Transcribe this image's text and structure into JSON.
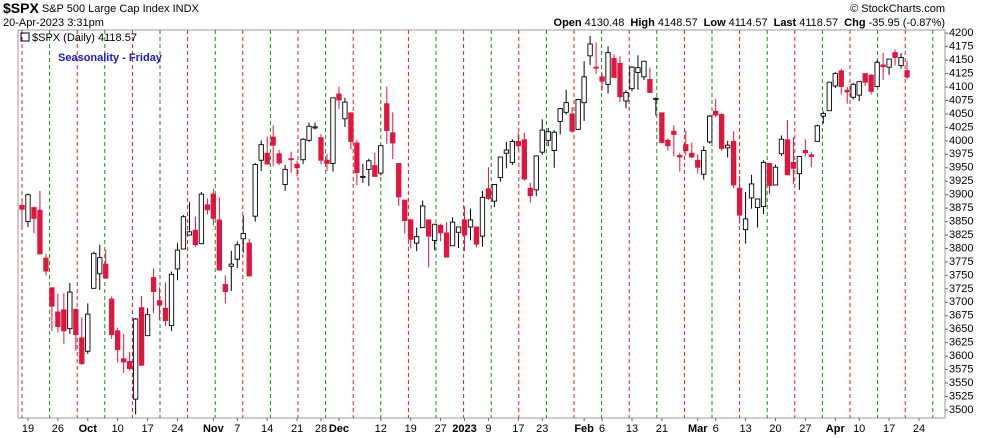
{
  "chart_data": {
    "type": "candlestick",
    "symbol": "$SPX",
    "name": "S&P 500 Large Cap Index",
    "exchange": "INDX",
    "timestamp": "20-Apr-2023 3:31pm",
    "quote": [
      {
        "label": "Open",
        "value": 4130.48
      },
      {
        "label": "High",
        "value": 4148.57
      },
      {
        "label": "Low",
        "value": 4114.57
      },
      {
        "label": "Last",
        "value": 4118.57
      },
      {
        "label": "Chg",
        "value": "-35.95 (-0.87%)"
      }
    ],
    "credit": "© StockCharts.com",
    "legend": "$SPX (Daily) 4118.57",
    "title": "Seasonality - Friday",
    "categories": [
      null,
      "19",
      null,
      null,
      null,
      null,
      "26",
      null,
      null,
      null,
      null,
      "Oct",
      null,
      null,
      null,
      null,
      "10",
      null,
      null,
      null,
      null,
      "17",
      null,
      null,
      null,
      null,
      "24",
      null,
      null,
      null,
      null,
      null,
      "Nov",
      null,
      null,
      null,
      "7",
      null,
      null,
      null,
      null,
      "14",
      null,
      null,
      null,
      null,
      "21",
      null,
      null,
      null,
      "28",
      null,
      null,
      "Dec",
      null,
      null,
      null,
      null,
      null,
      null,
      "12",
      null,
      null,
      null,
      null,
      "19",
      null,
      null,
      null,
      null,
      "27",
      null,
      null,
      null,
      "2023",
      null,
      null,
      null,
      "9",
      null,
      null,
      null,
      null,
      "17",
      null,
      null,
      null,
      "23",
      null,
      null,
      null,
      null,
      null,
      null,
      "Feb",
      null,
      null,
      "6",
      null,
      null,
      null,
      null,
      "13",
      null,
      null,
      null,
      null,
      "21",
      null,
      null,
      null,
      null,
      null,
      "Mar",
      null,
      null,
      "6",
      null,
      null,
      null,
      null,
      "13",
      null,
      null,
      null,
      null,
      "20",
      null,
      null,
      null,
      null,
      "27",
      null,
      null,
      null,
      null,
      "Apr",
      null,
      null,
      null,
      "10",
      null,
      null,
      null,
      null,
      "17",
      null,
      null,
      null,
      null,
      "24",
      null,
      null
    ],
    "series": [
      {
        "name": "$SPX",
        "up_color": "#000000",
        "down_color": "#e0163e",
        "open": [
          3880,
          3850,
          3876,
          3871,
          3782,
          3727,
          3682,
          3686,
          3651,
          3687,
          3634,
          3609,
          3726,
          3753,
          3771,
          3706,
          3647,
          3595,
          3590,
          3520,
          3690,
          3638,
          3746,
          3703,
          3689,
          3657,
          3762,
          3799,
          3825,
          3834,
          3809,
          3881,
          3901,
          3853,
          3733,
          3767,
          3780,
          3818,
          3810,
          3860,
          3964,
          3977,
          4007,
          3976,
          3919,
          3967,
          3956,
          3965,
          4001,
          4024,
          4006,
          3964,
          3958,
          4087,
          4041,
          4052,
          3996,
          3933,
          3947,
          3954,
          3940,
          4069,
          4015,
          3958,
          3890,
          3853,
          3810,
          3839,
          3853,
          3815,
          3843,
          3829,
          3805,
          3830,
          3853,
          3840,
          3840,
          3823,
          3911,
          3888,
          3932,
          3977,
          3960,
          3999,
          4002,
          3912,
          3909,
          3979,
          4001,
          3982,
          4036,
          4053,
          4050,
          4021,
          4071,
          4158,
          4137,
          4119,
          4105,
          4153,
          4144,
          4074,
          4097,
          4127,
          4119,
          4114,
          4077,
          4052,
          4001,
          4018,
          3973,
          3993,
          3977,
          3964,
          3938,
          3998,
          4055,
          4049,
          3987,
          3999,
          3912,
          3835,
          3894,
          3876,
          3878,
          3958,
          3918,
          3976,
          4002,
          3960,
          3939,
          3982,
          3974,
          3999,
          4046,
          4056,
          4102,
          4130,
          4094,
          4081,
          4085,
          4125,
          4122,
          4101,
          4141,
          4137,
          4164,
          4140,
          4130.48,
          null,
          null,
          null,
          null
        ],
        "high": [
          3886,
          3902,
          3878,
          3907,
          3790,
          3727,
          3716,
          3717,
          3736,
          3687,
          3672,
          3698,
          3794,
          3807,
          3797,
          3711,
          3653,
          3641,
          3608,
          3671,
          3712,
          3689,
          3763,
          3728,
          3737,
          3757,
          3810,
          3862,
          3886,
          3859,
          3905,
          3893,
          3911,
          3895,
          3750,
          3796,
          3813,
          3861,
          3818,
          3959,
          4001,
          4008,
          4029,
          3983,
          3955,
          3980,
          3963,
          4005,
          4034,
          4034,
          4013,
          3976,
          4080,
          4101,
          4080,
          4053,
          4002,
          3957,
          3967,
          3978,
          3990,
          4101,
          4053,
          3959,
          3890,
          3855,
          3839,
          3889,
          3853,
          3846,
          3846,
          3849,
          3858,
          3840,
          3878,
          3874,
          3840,
          3907,
          3951,
          3919,
          3970,
          3998,
          4003,
          4015,
          4015,
          3922,
          3973,
          4040,
          4024,
          4020,
          4061,
          4095,
          4063,
          4077,
          4148,
          4195,
          4183,
          4125,
          4176,
          4161,
          4157,
          4094,
          4139,
          4159,
          4148,
          4136,
          4081,
          4052,
          4004,
          4029,
          3978,
          4019,
          3997,
          3975,
          3990,
          4048,
          4078,
          4051,
          4000,
          4018,
          3935,
          3905,
          3937,
          3891,
          3964,
          3959,
          3956,
          4010,
          4039,
          4007,
          3972,
          4003,
          3979,
          4030,
          4055,
          4110,
          4128,
          4134,
          4100,
          4108,
          4110,
          4125,
          4124,
          4150,
          4164,
          4152,
          4170,
          4163,
          4148.57,
          null,
          null,
          null,
          null
        ],
        "low": [
          3838,
          3840,
          3828,
          3789,
          3750,
          3647,
          3644,
          3623,
          3641,
          3610,
          3584,
          3604,
          3726,
          3723,
          3744,
          3632,
          3588,
          3569,
          3573,
          3492,
          3583,
          3638,
          3680,
          3667,
          3656,
          3647,
          3741,
          3799,
          3824,
          3803,
          3808,
          3863,
          3843,
          3759,
          3698,
          3721,
          3764,
          3792,
          3748,
          3850,
          3944,
          3956,
          3953,
          3955,
          3907,
          3940,
          3934,
          3957,
          3998,
          4021,
          3956,
          3944,
          3943,
          4059,
          4026,
          3984,
          3918,
          3922,
          3916,
          3933,
          3936,
          3994,
          3966,
          3879,
          3828,
          3800,
          3795,
          3838,
          3765,
          3797,
          3813,
          3784,
          3805,
          3801,
          3795,
          3815,
          3802,
          3803,
          3890,
          3877,
          3924,
          3949,
          3955,
          3984,
          3926,
          3885,
          3897,
          3974,
          3990,
          3950,
          4012,
          4049,
          4015,
          4020,
          4037,
          4141,
          4124,
          4093,
          4088,
          4117,
          4072,
          4061,
          4092,
          4095,
          4113,
          4089,
          4047,
          3995,
          3982,
          3971,
          3943,
          3973,
          3968,
          3939,
          3928,
          3995,
          4044,
          3981,
          3969,
          3912,
          3846,
          3809,
          3874,
          3839,
          3864,
          3901,
          3917,
          3972,
          3937,
          3920,
          3909,
          3971,
          3951,
          3999,
          4032,
          4056,
          4098,
          4086,
          4069,
          4077,
          4074,
          4102,
          4086,
          4100,
          4113,
          4123,
          4140,
          4134,
          4114.57,
          null,
          null,
          null,
          null
        ],
        "close": [
          3873,
          3900,
          3856,
          3790,
          3758,
          3693,
          3655,
          3647,
          3719,
          3640,
          3586,
          3678,
          3791,
          3783,
          3745,
          3640,
          3612,
          3589,
          3577,
          3669,
          3583,
          3677,
          3720,
          3695,
          3666,
          3752,
          3797,
          3859,
          3831,
          3807,
          3901,
          3872,
          3856,
          3760,
          3720,
          3771,
          3807,
          3828,
          3749,
          3956,
          3993,
          3957,
          3992,
          3959,
          3947,
          3965,
          3950,
          4003,
          4027,
          4026,
          3964,
          3958,
          4080,
          4076,
          4072,
          3999,
          3941,
          3934,
          3963,
          3934,
          3991,
          4019,
          3996,
          3896,
          3852,
          3817,
          3822,
          3879,
          3823,
          3845,
          3829,
          3784,
          3849,
          3840,
          3825,
          3853,
          3808,
          3895,
          3893,
          3919,
          3970,
          3983,
          3999,
          3991,
          3929,
          3898,
          3972,
          4020,
          4017,
          4016,
          4060,
          4071,
          4018,
          4077,
          4119,
          4180,
          4136,
          4111,
          4164,
          4118,
          4082,
          4090,
          4137,
          4136,
          4148,
          4090,
          4079,
          3997,
          3991,
          4012,
          3970,
          3982,
          3970,
          3951,
          3982,
          4046,
          4048,
          3986,
          3992,
          3918,
          3862,
          3855,
          3920,
          3892,
          3960,
          3917,
          3951,
          4003,
          3937,
          3949,
          3971,
          3978,
          3971,
          4028,
          4051,
          4109,
          4125,
          4101,
          4091,
          4105,
          4110,
          4109,
          4092,
          4146,
          4138,
          4152,
          4155,
          4155,
          4118.57,
          null,
          null,
          null,
          null
        ]
      }
    ],
    "ylim": [
      3485,
      4206
    ],
    "yticks": [
      3500,
      3525,
      3550,
      3575,
      3600,
      3625,
      3650,
      3675,
      3700,
      3725,
      3750,
      3775,
      3800,
      3825,
      3850,
      3875,
      3900,
      3925,
      3950,
      3975,
      4000,
      4025,
      4050,
      4075,
      4100,
      4125,
      4150,
      4175,
      4200
    ],
    "grid": false
  }
}
